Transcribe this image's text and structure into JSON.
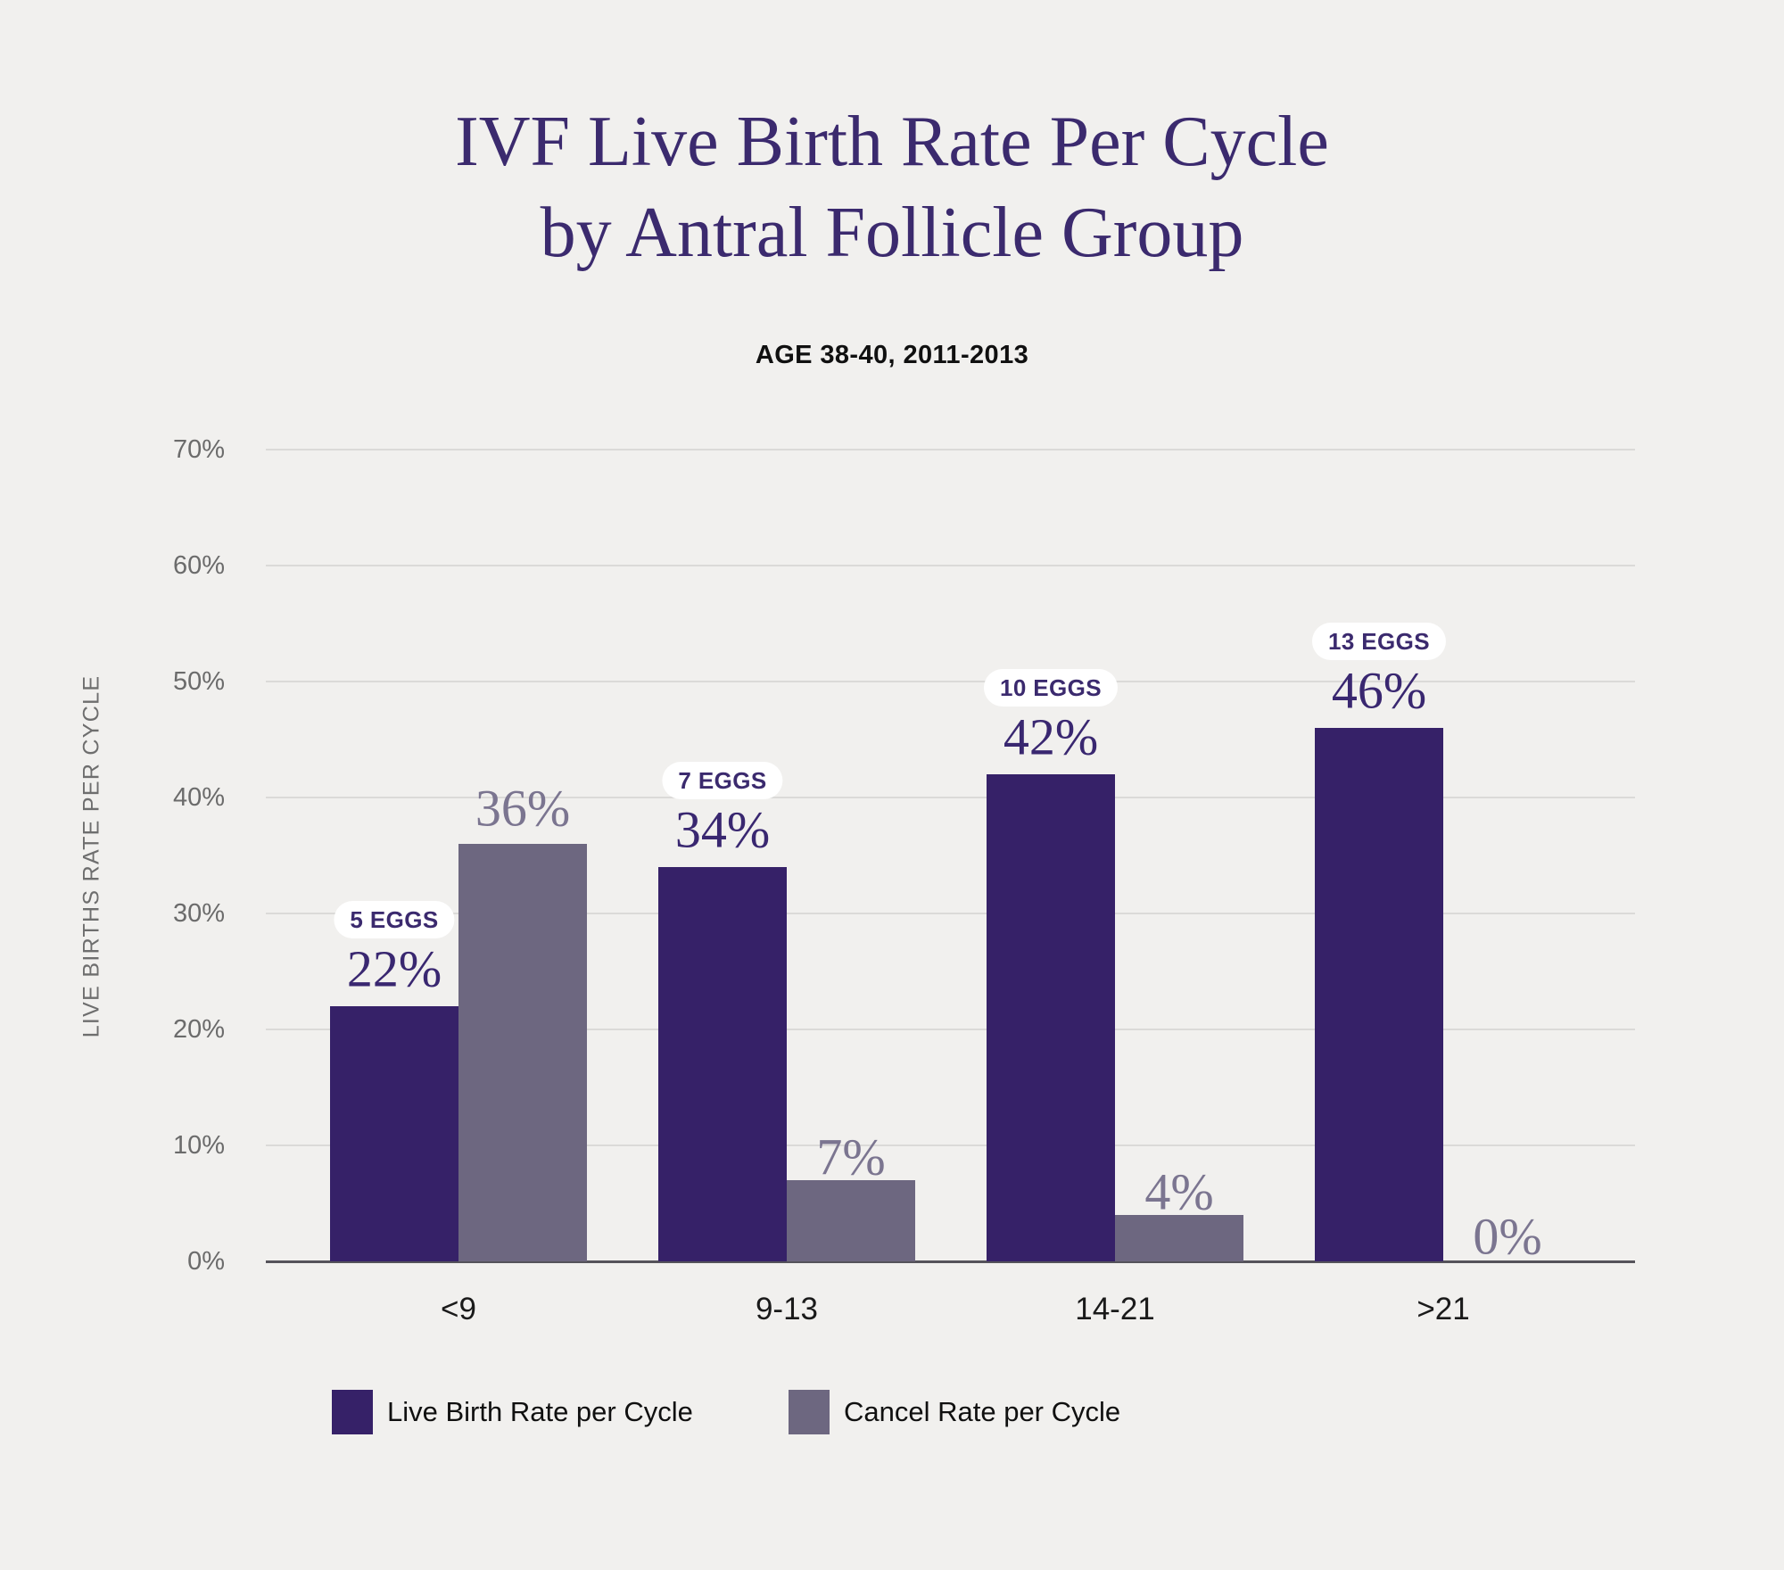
{
  "title": {
    "line1": "IVF Live Birth Rate Per Cycle",
    "line2": "by Antral Follicle Group"
  },
  "subtitle": "AGE 38-40, 2011-2013",
  "y_axis_title": "LIVE BIRTHS RATE PER CYCLE",
  "colors": {
    "background": "#F1F0EE",
    "live_birth": "#362168",
    "cancel": "#6D6780",
    "gridline": "#DBDAD8",
    "axis_line": "#55535A",
    "title_text": "#3B2A6E",
    "tick_text": "#6B6B6B",
    "category_text": "#1A1A1A",
    "purple_value_text": "#392770",
    "gray_value_text": "#7B7590",
    "badge_bg": "#FFFFFF",
    "badge_text": "#3B2A6E"
  },
  "chart_data": {
    "type": "bar",
    "title": "IVF Live Birth Rate Per Cycle by Antral Follicle Group",
    "subtitle": "AGE 38-40, 2011-2013",
    "categories": [
      "<9",
      "9-13",
      "14-21",
      ">21"
    ],
    "series": [
      {
        "name": "Live Birth Rate per Cycle",
        "values": [
          22,
          34,
          42,
          46
        ],
        "labels": [
          "22%",
          "34%",
          "42%",
          "46%"
        ],
        "color": "#362168"
      },
      {
        "name": "Cancel Rate per Cycle",
        "values": [
          36,
          7,
          4,
          0
        ],
        "labels": [
          "36%",
          "7%",
          "4%",
          "0%"
        ],
        "color": "#6D6780"
      }
    ],
    "annotations": [
      "5 EGGS",
      "7 EGGS",
      "10 EGGS",
      "13 EGGS"
    ],
    "xlabel": "",
    "ylabel": "LIVE BIRTHS RATE PER CYCLE",
    "ylim": [
      0,
      70
    ],
    "yticks": [
      "0%",
      "10%",
      "20%",
      "30%",
      "40%",
      "50%",
      "60%",
      "70%"
    ],
    "grid": true,
    "legend_position": "bottom"
  },
  "legend": {
    "items": [
      {
        "label": "Live Birth Rate per Cycle",
        "color": "#362168"
      },
      {
        "label": "Cancel Rate per Cycle",
        "color": "#6D6780"
      }
    ]
  }
}
